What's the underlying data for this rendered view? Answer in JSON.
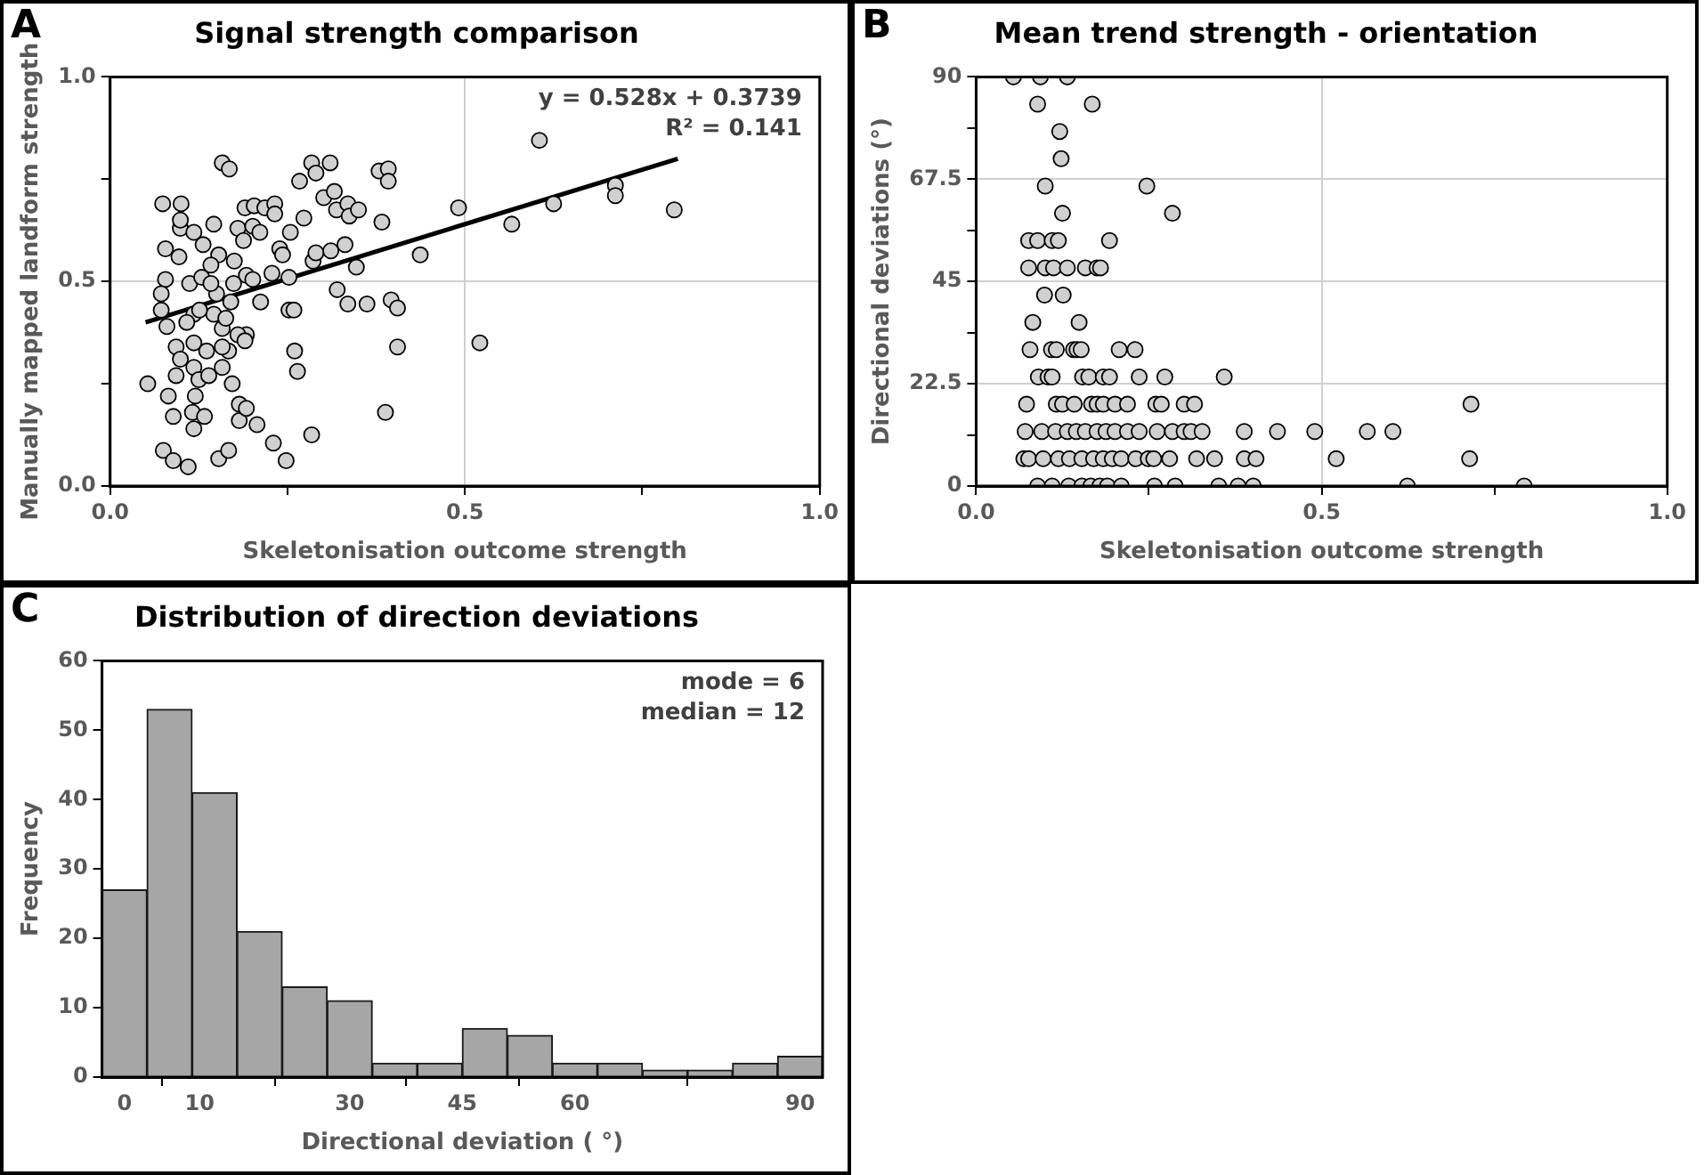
{
  "chart_data": [
    {
      "type": "scatter",
      "title": "Signal strength comparison",
      "xlabel": "Skeletonisation outcome strength",
      "ylabel": "Manually mapped landform strength",
      "marker": "circle",
      "grid": true,
      "annotations": [
        "A",
        "y = 0.528x + 0.3739",
        "R² = 0.141"
      ],
      "xlim": [
        0,
        1
      ],
      "xticks": [
        {
          "value": 0,
          "label": "0.0"
        },
        {
          "value": 0.25,
          "label": null
        },
        {
          "value": 0.5,
          "label": "0.5"
        },
        {
          "value": 0.75,
          "label": null
        },
        {
          "value": 1,
          "label": "1.0"
        }
      ],
      "ylim": [
        0,
        1
      ],
      "yticks": [
        {
          "value": 0,
          "label": "0.0"
        },
        {
          "value": 0.25,
          "label": null
        },
        {
          "value": 0.5,
          "label": "0.5"
        },
        {
          "value": 0.75,
          "label": null
        },
        {
          "value": 1,
          "label": "1.0"
        }
      ],
      "series": [
        {
          "type": "scatter",
          "color": "#d0d0d0",
          "x": [
            0.053,
            0.074,
            0.1,
            0.078,
            0.078,
            0.072,
            0.072,
            0.08,
            0.082,
            0.075,
            0.089,
            0.089,
            0.11,
            0.093,
            0.093,
            0.099,
            0.099,
            0.097,
            0.112,
            0.118,
            0.118,
            0.118,
            0.118,
            0.12,
            0.116,
            0.118,
            0.133,
            0.125,
            0.139,
            0.131,
            0.158,
            0.168,
            0.146,
            0.153,
            0.15,
            0.146,
            0.158,
            0.158,
            0.167,
            0.153,
            0.167,
            0.172,
            0.182,
            0.182,
            0.192,
            0.207,
            0.18,
            0.188,
            0.19,
            0.192,
            0.192,
            0.18,
            0.203,
            0.201,
            0.211,
            0.201,
            0.212,
            0.218,
            0.232,
            0.232,
            0.228,
            0.239,
            0.243,
            0.252,
            0.252,
            0.259,
            0.254,
            0.26,
            0.264,
            0.23,
            0.248,
            0.267,
            0.273,
            0.284,
            0.29,
            0.286,
            0.29,
            0.284,
            0.301,
            0.31,
            0.316,
            0.319,
            0.311,
            0.32,
            0.331,
            0.335,
            0.335,
            0.337,
            0.347,
            0.35,
            0.362,
            0.379,
            0.392,
            0.392,
            0.383,
            0.396,
            0.405,
            0.405,
            0.388,
            0.437,
            0.491,
            0.521,
            0.566,
            0.605,
            0.625,
            0.712,
            0.712,
            0.795,
            0.099,
            0.129,
            0.142,
            0.163,
            0.17,
            0.175,
            0.136,
            0.158,
            0.126,
            0.108,
            0.142,
            0.174,
            0.19
          ],
          "values": [
            0.25,
            0.69,
            0.69,
            0.58,
            0.505,
            0.47,
            0.43,
            0.39,
            0.22,
            0.087,
            0.062,
            0.17,
            0.047,
            0.34,
            0.27,
            0.31,
            0.63,
            0.56,
            0.495,
            0.62,
            0.42,
            0.35,
            0.29,
            0.22,
            0.18,
            0.14,
            0.17,
            0.26,
            0.27,
            0.59,
            0.79,
            0.775,
            0.64,
            0.565,
            0.47,
            0.42,
            0.385,
            0.29,
            0.33,
            0.067,
            0.087,
            0.25,
            0.2,
            0.16,
            0.19,
            0.15,
            0.63,
            0.6,
            0.68,
            0.515,
            0.37,
            0.37,
            0.685,
            0.635,
            0.62,
            0.505,
            0.45,
            0.68,
            0.69,
            0.665,
            0.52,
            0.58,
            0.565,
            0.51,
            0.43,
            0.43,
            0.62,
            0.33,
            0.28,
            0.105,
            0.062,
            0.745,
            0.655,
            0.79,
            0.765,
            0.55,
            0.57,
            0.125,
            0.705,
            0.79,
            0.72,
            0.675,
            0.575,
            0.48,
            0.59,
            0.69,
            0.445,
            0.66,
            0.535,
            0.675,
            0.445,
            0.77,
            0.775,
            0.745,
            0.645,
            0.455,
            0.435,
            0.34,
            0.18,
            0.565,
            0.68,
            0.35,
            0.64,
            0.845,
            0.69,
            0.735,
            0.71,
            0.675,
            0.65,
            0.51,
            0.54,
            0.41,
            0.45,
            0.55,
            0.33,
            0.34,
            0.43,
            0.4,
            0.495,
            0.495,
            0.355
          ]
        },
        {
          "type": "line",
          "color": "#000000",
          "marker": "none",
          "x": [
            0.05,
            0.8
          ],
          "values": [
            0.4,
            0.8
          ]
        }
      ]
    },
    {
      "type": "scatter",
      "title": "Mean trend strength - orientation",
      "xlabel": "Skeletonisation outcome strength",
      "ylabel": "Directional deviations (°)",
      "marker": "circle",
      "grid": true,
      "annotations": [
        "B"
      ],
      "xlim": [
        0,
        1
      ],
      "xticks": [
        {
          "value": 0,
          "label": "0.0"
        },
        {
          "value": 0.25,
          "label": null
        },
        {
          "value": 0.5,
          "label": "0.5"
        },
        {
          "value": 0.75,
          "label": null
        },
        {
          "value": 1,
          "label": "1.0"
        }
      ],
      "ylim": [
        0,
        90
      ],
      "yticks": [
        0,
        {
          "value": 11.25,
          "label": null
        },
        22.5,
        {
          "value": 33.75,
          "label": null
        },
        45,
        {
          "value": 56.25,
          "label": null
        },
        67.5,
        {
          "value": 78.75,
          "label": null
        },
        90
      ],
      "series": [
        {
          "type": "scatter",
          "color": "#d0d0d0",
          "x": [
            0.054,
            0.093,
            0.132,
            0.089,
            0.168,
            0.121,
            0.123,
            0.1,
            0.247,
            0.125,
            0.284,
            0.076,
            0.089,
            0.11,
            0.119,
            0.193,
            0.076,
            0.1,
            0.112,
            0.132,
            0.158,
            0.175,
            0.18,
            0.099,
            0.126,
            0.082,
            0.149,
            0.078,
            0.109,
            0.116,
            0.141,
            0.146,
            0.152,
            0.207,
            0.23,
            0.09,
            0.104,
            0.11,
            0.154,
            0.163,
            0.184,
            0.193,
            0.236,
            0.273,
            0.359,
            0.073,
            0.116,
            0.125,
            0.142,
            0.167,
            0.175,
            0.184,
            0.201,
            0.219,
            0.26,
            0.268,
            0.301,
            0.316,
            0.716,
            0.071,
            0.095,
            0.115,
            0.132,
            0.145,
            0.158,
            0.175,
            0.188,
            0.201,
            0.219,
            0.236,
            0.262,
            0.284,
            0.301,
            0.311,
            0.327,
            0.388,
            0.436,
            0.49,
            0.566,
            0.603,
            0.069,
            0.076,
            0.097,
            0.119,
            0.135,
            0.153,
            0.17,
            0.184,
            0.197,
            0.21,
            0.231,
            0.249,
            0.257,
            0.28,
            0.319,
            0.345,
            0.388,
            0.405,
            0.521,
            0.714,
            0.089,
            0.11,
            0.134,
            0.153,
            0.166,
            0.179,
            0.19,
            0.21,
            0.258,
            0.288,
            0.351,
            0.379,
            0.401,
            0.624,
            0.793
          ],
          "values": [
            90,
            90,
            90,
            84,
            84,
            78,
            72,
            66,
            66,
            60,
            60,
            54,
            54,
            54,
            54,
            54,
            48,
            48,
            48,
            48,
            48,
            48,
            48,
            42,
            42,
            36,
            36,
            30,
            30,
            30,
            30,
            30,
            30,
            30,
            30,
            24,
            24,
            24,
            24,
            24,
            24,
            24,
            24,
            24,
            24,
            18,
            18,
            18,
            18,
            18,
            18,
            18,
            18,
            18,
            18,
            18,
            18,
            18,
            18,
            12,
            12,
            12,
            12,
            12,
            12,
            12,
            12,
            12,
            12,
            12,
            12,
            12,
            12,
            12,
            12,
            12,
            12,
            12,
            12,
            12,
            6,
            6,
            6,
            6,
            6,
            6,
            6,
            6,
            6,
            6,
            6,
            6,
            6,
            6,
            6,
            6,
            6,
            6,
            6,
            6,
            0,
            0,
            0,
            0,
            0,
            0,
            0,
            0,
            0,
            0,
            0,
            0,
            0,
            0,
            0
          ]
        }
      ]
    },
    {
      "type": "histogram",
      "title": "Distribution of direction deviations",
      "xlabel": "Directional deviation ( °)",
      "ylabel": "Frequency",
      "color": "#a6a6a6",
      "grid": false,
      "annotations": [
        "C",
        "mode = 6",
        "median = 12"
      ],
      "bins": [
        -3,
        3,
        9,
        15,
        21,
        27,
        33,
        39,
        45,
        51,
        57,
        63,
        69,
        75,
        81,
        87,
        93
      ],
      "values": [
        27,
        53,
        41,
        21,
        13,
        11,
        2,
        2,
        7,
        6,
        2,
        2,
        1,
        1,
        2,
        3
      ],
      "xlim": [
        -3,
        93
      ],
      "xticks": [
        0,
        10,
        30,
        45,
        60,
        90
      ],
      "ylim": [
        0,
        60
      ],
      "yticks": [
        0,
        10,
        20,
        30,
        40,
        50,
        60
      ]
    }
  ]
}
